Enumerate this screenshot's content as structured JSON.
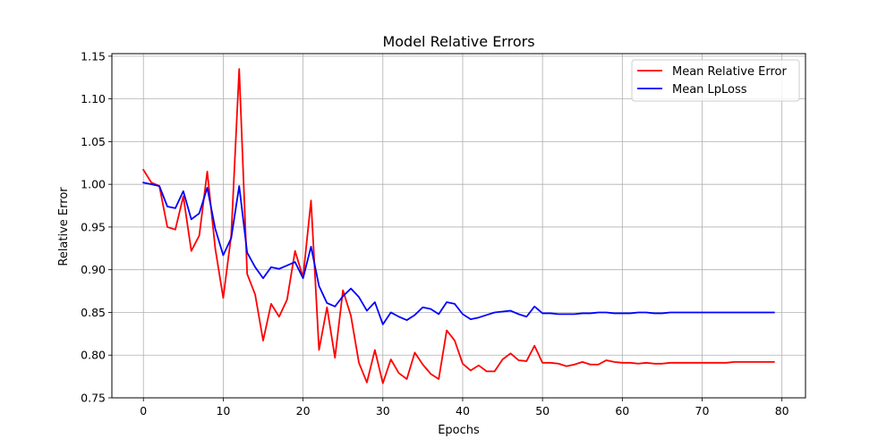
{
  "chart_data": {
    "type": "line",
    "title": "Model Relative Errors",
    "xlabel": "Epochs",
    "ylabel": "Relative Error",
    "xlim": [
      -3.95,
      82.95
    ],
    "ylim": [
      0.75,
      1.153
    ],
    "xticks": [
      0,
      10,
      20,
      30,
      40,
      50,
      60,
      70,
      80
    ],
    "yticks": [
      0.75,
      0.8,
      0.85,
      0.9,
      0.95,
      1.0,
      1.05,
      1.1,
      1.15
    ],
    "ytick_labels": [
      "0.75",
      "0.80",
      "0.85",
      "0.90",
      "0.95",
      "1.00",
      "1.05",
      "1.10",
      "1.15"
    ],
    "grid": true,
    "legend_position": "top-right",
    "x": [
      0,
      1,
      2,
      3,
      4,
      5,
      6,
      7,
      8,
      9,
      10,
      11,
      12,
      13,
      14,
      15,
      16,
      17,
      18,
      19,
      20,
      21,
      22,
      23,
      24,
      25,
      26,
      27,
      28,
      29,
      30,
      31,
      32,
      33,
      34,
      35,
      36,
      37,
      38,
      39,
      40,
      41,
      42,
      43,
      44,
      45,
      46,
      47,
      48,
      49,
      50,
      51,
      52,
      53,
      54,
      55,
      56,
      57,
      58,
      59,
      60,
      61,
      62,
      63,
      64,
      65,
      66,
      67,
      68,
      69,
      70,
      71,
      72,
      73,
      74,
      75,
      76,
      77,
      78,
      79
    ],
    "series": [
      {
        "name": "Mean Relative Error",
        "color": "#ff0000",
        "values": [
          1.017,
          1.002,
          0.998,
          0.95,
          0.947,
          0.986,
          0.922,
          0.94,
          1.015,
          0.925,
          0.867,
          0.94,
          1.135,
          0.895,
          0.871,
          0.817,
          0.86,
          0.845,
          0.865,
          0.922,
          0.891,
          0.981,
          0.806,
          0.856,
          0.797,
          0.876,
          0.846,
          0.791,
          0.768,
          0.806,
          0.767,
          0.795,
          0.779,
          0.772,
          0.803,
          0.789,
          0.778,
          0.772,
          0.829,
          0.817,
          0.79,
          0.782,
          0.788,
          0.781,
          0.781,
          0.795,
          0.802,
          0.794,
          0.793,
          0.811,
          0.791,
          0.791,
          0.79,
          0.787,
          0.789,
          0.792,
          0.789,
          0.789,
          0.794,
          0.792,
          0.791,
          0.791,
          0.79,
          0.791,
          0.79,
          0.79,
          0.791,
          0.791,
          0.791,
          0.791,
          0.791,
          0.791,
          0.791,
          0.791,
          0.792,
          0.792,
          0.792,
          0.792,
          0.792,
          0.792
        ]
      },
      {
        "name": "Mean LpLoss",
        "color": "#0000ff",
        "values": [
          1.002,
          1.0,
          0.998,
          0.974,
          0.972,
          0.992,
          0.959,
          0.966,
          0.996,
          0.948,
          0.917,
          0.937,
          0.998,
          0.92,
          0.903,
          0.89,
          0.903,
          0.901,
          0.905,
          0.909,
          0.89,
          0.927,
          0.881,
          0.861,
          0.857,
          0.869,
          0.878,
          0.868,
          0.852,
          0.862,
          0.836,
          0.85,
          0.845,
          0.841,
          0.847,
          0.856,
          0.854,
          0.848,
          0.862,
          0.86,
          0.848,
          0.842,
          0.844,
          0.847,
          0.85,
          0.851,
          0.852,
          0.848,
          0.845,
          0.857,
          0.849,
          0.849,
          0.848,
          0.848,
          0.848,
          0.849,
          0.849,
          0.85,
          0.85,
          0.849,
          0.849,
          0.849,
          0.85,
          0.85,
          0.849,
          0.849,
          0.85,
          0.85,
          0.85,
          0.85,
          0.85,
          0.85,
          0.85,
          0.85,
          0.85,
          0.85,
          0.85,
          0.85,
          0.85,
          0.85
        ]
      }
    ]
  }
}
